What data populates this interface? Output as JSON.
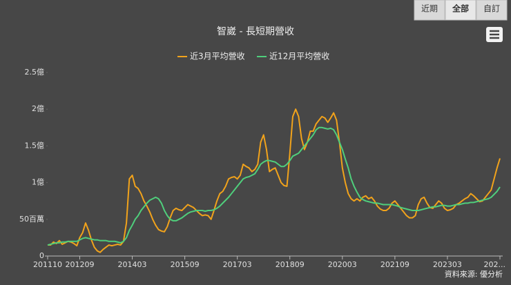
{
  "chart_data": {
    "type": "line",
    "title": "智崴 - 長短期營收",
    "range_buttons": [
      "近期",
      "全部",
      "自訂"
    ],
    "credit": "資料來源: 優分析",
    "categories": [
      "201110",
      null,
      null,
      null,
      null,
      null,
      null,
      null,
      null,
      null,
      null,
      "201209",
      null,
      null,
      null,
      null,
      null,
      null,
      null,
      null,
      null,
      null,
      null,
      null,
      null,
      null,
      null,
      null,
      null,
      "201403",
      null,
      null,
      null,
      null,
      null,
      null,
      null,
      null,
      null,
      null,
      null,
      null,
      null,
      null,
      null,
      null,
      null,
      "201509",
      null,
      null,
      null,
      null,
      null,
      null,
      null,
      null,
      null,
      null,
      null,
      null,
      null,
      null,
      null,
      null,
      null,
      "201703",
      null,
      null,
      null,
      null,
      null,
      null,
      null,
      null,
      null,
      null,
      null,
      null,
      null,
      null,
      null,
      null,
      null,
      "201809",
      null,
      null,
      null,
      null,
      null,
      null,
      null,
      null,
      null,
      null,
      null,
      null,
      null,
      null,
      null,
      null,
      null,
      "202003",
      null,
      null,
      null,
      null,
      null,
      null,
      null,
      null,
      null,
      null,
      null,
      null,
      null,
      null,
      null,
      null,
      null,
      "202109",
      null,
      null,
      null,
      null,
      null,
      null,
      null,
      null,
      null,
      null,
      null,
      null,
      null,
      null,
      null,
      null,
      null,
      "202303",
      null,
      null,
      null,
      null,
      null,
      null,
      null,
      null,
      null,
      null,
      null,
      null,
      null,
      null,
      null,
      null,
      null,
      "202..."
    ],
    "series": [
      {
        "name": "近3月平均營收",
        "color": "#f2a31b",
        "values": [
          0.15,
          0.15,
          0.19,
          0.17,
          0.21,
          0.16,
          0.18,
          0.2,
          0.19,
          0.17,
          0.14,
          0.25,
          0.32,
          0.45,
          0.35,
          0.22,
          0.12,
          0.07,
          0.05,
          0.09,
          0.12,
          0.15,
          0.14,
          0.15,
          0.16,
          0.15,
          0.2,
          0.45,
          1.05,
          1.1,
          0.95,
          0.92,
          0.85,
          0.75,
          0.68,
          0.6,
          0.5,
          0.42,
          0.36,
          0.34,
          0.33,
          0.4,
          0.52,
          0.62,
          0.65,
          0.63,
          0.62,
          0.66,
          0.7,
          0.68,
          0.66,
          0.62,
          0.58,
          0.55,
          0.56,
          0.55,
          0.5,
          0.62,
          0.75,
          0.85,
          0.88,
          0.95,
          1.05,
          1.07,
          1.08,
          1.05,
          1.1,
          1.25,
          1.22,
          1.2,
          1.15,
          1.18,
          1.25,
          1.55,
          1.65,
          1.45,
          1.15,
          1.18,
          1.2,
          1.1,
          1.0,
          0.96,
          0.95,
          1.4,
          1.9,
          2.0,
          1.9,
          1.6,
          1.45,
          1.55,
          1.7,
          1.7,
          1.8,
          1.85,
          1.9,
          1.88,
          1.82,
          1.88,
          1.95,
          1.85,
          1.55,
          1.2,
          1.0,
          0.85,
          0.78,
          0.75,
          0.78,
          0.75,
          0.8,
          0.82,
          0.78,
          0.8,
          0.75,
          0.68,
          0.64,
          0.62,
          0.62,
          0.65,
          0.72,
          0.75,
          0.7,
          0.65,
          0.6,
          0.55,
          0.52,
          0.52,
          0.55,
          0.7,
          0.78,
          0.8,
          0.72,
          0.66,
          0.65,
          0.7,
          0.75,
          0.72,
          0.65,
          0.62,
          0.63,
          0.65,
          0.7,
          0.72,
          0.75,
          0.78,
          0.8,
          0.85,
          0.82,
          0.78,
          0.74,
          0.75,
          0.8,
          0.85,
          0.9,
          1.05,
          1.2,
          1.33
        ]
      },
      {
        "name": "近12月平均營收",
        "color": "#4fcf7c",
        "values": [
          0.15,
          0.16,
          0.17,
          0.18,
          0.18,
          0.19,
          0.19,
          0.2,
          0.2,
          0.2,
          0.2,
          0.22,
          0.24,
          0.25,
          0.24,
          0.23,
          0.22,
          0.22,
          0.21,
          0.21,
          0.21,
          0.2,
          0.2,
          0.2,
          0.19,
          0.18,
          0.2,
          0.25,
          0.35,
          0.42,
          0.5,
          0.55,
          0.62,
          0.67,
          0.72,
          0.76,
          0.78,
          0.8,
          0.78,
          0.72,
          0.62,
          0.55,
          0.5,
          0.48,
          0.48,
          0.5,
          0.52,
          0.55,
          0.58,
          0.6,
          0.61,
          0.62,
          0.62,
          0.62,
          0.61,
          0.62,
          0.62,
          0.63,
          0.65,
          0.68,
          0.72,
          0.76,
          0.8,
          0.85,
          0.9,
          0.95,
          1.0,
          1.05,
          1.07,
          1.08,
          1.1,
          1.12,
          1.18,
          1.25,
          1.28,
          1.3,
          1.3,
          1.29,
          1.28,
          1.25,
          1.22,
          1.22,
          1.25,
          1.3,
          1.36,
          1.38,
          1.4,
          1.45,
          1.5,
          1.55,
          1.6,
          1.65,
          1.72,
          1.75,
          1.75,
          1.74,
          1.73,
          1.74,
          1.72,
          1.65,
          1.55,
          1.45,
          1.32,
          1.2,
          1.05,
          0.95,
          0.87,
          0.8,
          0.77,
          0.75,
          0.74,
          0.73,
          0.72,
          0.72,
          0.71,
          0.7,
          0.7,
          0.7,
          0.7,
          0.69,
          0.68,
          0.66,
          0.65,
          0.64,
          0.63,
          0.62,
          0.62,
          0.62,
          0.63,
          0.64,
          0.65,
          0.66,
          0.67,
          0.67,
          0.68,
          0.69,
          0.69,
          0.68,
          0.68,
          0.69,
          0.7,
          0.7,
          0.71,
          0.72,
          0.72,
          0.73,
          0.73,
          0.74,
          0.75,
          0.76,
          0.77,
          0.78,
          0.8,
          0.84,
          0.88,
          0.94
        ]
      }
    ],
    "ylim": [
      0,
      2.5
    ],
    "yticks": [
      0,
      {
        "value": 0.5,
        "label": "50百萬"
      },
      {
        "value": 1,
        "label": "1億"
      },
      {
        "value": 1.5,
        "label": "1.5億"
      },
      {
        "value": 2,
        "label": "2億"
      },
      {
        "value": 2.5,
        "label": "2.5億"
      }
    ],
    "grid": false
  }
}
